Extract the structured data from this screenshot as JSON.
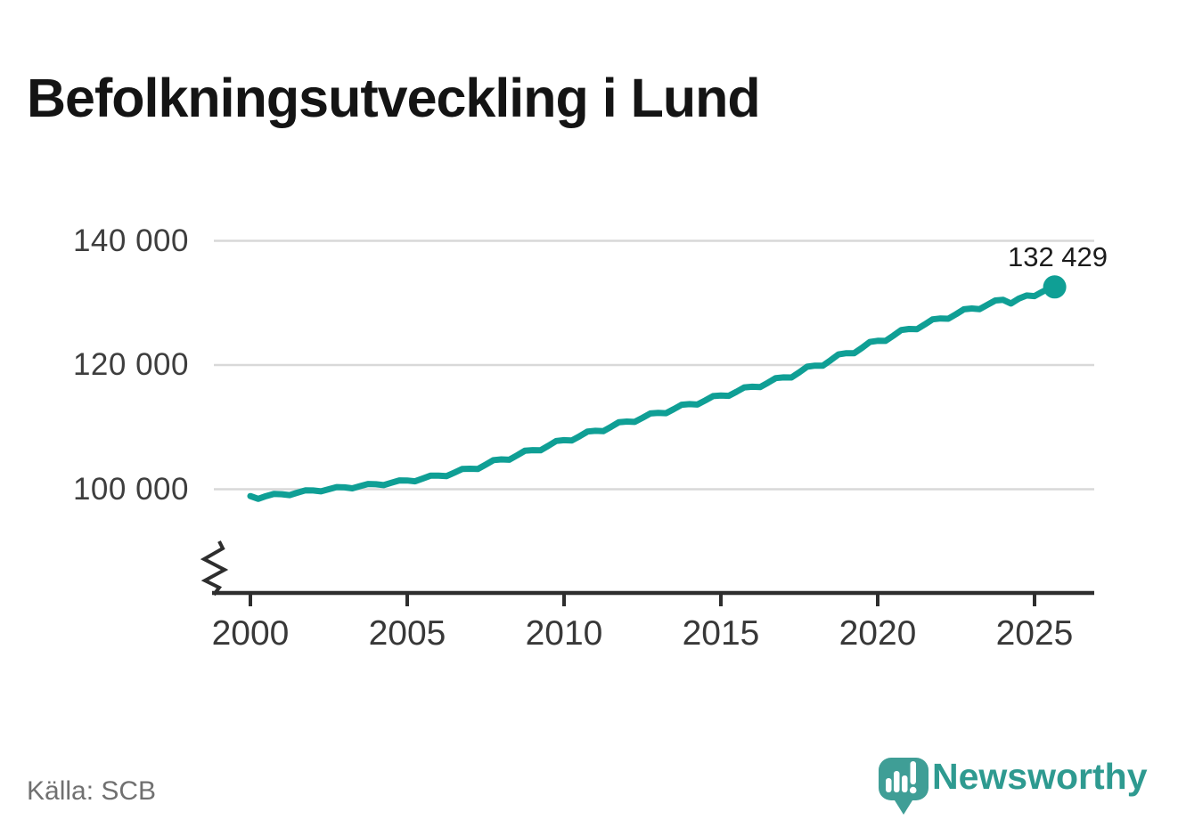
{
  "chart_data": {
    "type": "line",
    "title": "Befolkningsutveckling i Lund",
    "x": [
      2000,
      2000.25,
      2000.5,
      2000.75,
      2001,
      2001.25,
      2001.5,
      2001.75,
      2002,
      2002.25,
      2002.5,
      2002.75,
      2003,
      2003.25,
      2003.5,
      2003.75,
      2004,
      2004.25,
      2004.5,
      2004.75,
      2005,
      2005.25,
      2005.5,
      2005.75,
      2006,
      2006.25,
      2006.5,
      2006.75,
      2007,
      2007.25,
      2007.5,
      2007.75,
      2008,
      2008.25,
      2008.5,
      2008.75,
      2009,
      2009.25,
      2009.5,
      2009.75,
      2010,
      2010.25,
      2010.5,
      2010.75,
      2011,
      2011.25,
      2011.5,
      2011.75,
      2012,
      2012.25,
      2012.5,
      2012.75,
      2013,
      2013.25,
      2013.5,
      2013.75,
      2014,
      2014.25,
      2014.5,
      2014.75,
      2015,
      2015.25,
      2015.5,
      2015.75,
      2016,
      2016.25,
      2016.5,
      2016.75,
      2017,
      2017.25,
      2017.5,
      2017.75,
      2018,
      2018.25,
      2018.5,
      2018.75,
      2019,
      2019.25,
      2019.5,
      2019.75,
      2020,
      2020.25,
      2020.5,
      2020.75,
      2021,
      2021.25,
      2021.5,
      2021.75,
      2022,
      2022.25,
      2022.5,
      2022.75,
      2023,
      2023.25,
      2023.5,
      2023.75,
      2024,
      2024.25,
      2024.5,
      2024.75,
      2025,
      2025.25,
      2025.5
    ],
    "values": [
      98900,
      98450,
      98900,
      99250,
      99200,
      99060,
      99440,
      99820,
      99800,
      99650,
      100000,
      100340,
      100300,
      100150,
      100500,
      100840,
      100800,
      100660,
      101040,
      101420,
      101400,
      101280,
      101730,
      102190,
      102200,
      102110,
      102670,
      103250,
      103300,
      103250,
      103950,
      104690,
      104800,
      104750,
      105450,
      106190,
      106300,
      106260,
      106990,
      107770,
      107900,
      107850,
      108550,
      109290,
      109400,
      109350,
      110050,
      110790,
      110900,
      110840,
      111500,
      112200,
      112300,
      112240,
      112900,
      113600,
      113700,
      113640,
      114300,
      115000,
      115100,
      115040,
      115700,
      116400,
      116500,
      116450,
      117150,
      117890,
      118000,
      117990,
      118830,
      119730,
      119900,
      119900,
      120770,
      121710,
      121900,
      121900,
      122770,
      123710,
      123900,
      123890,
      124730,
      125630,
      125800,
      125770,
      126540,
      127360,
      127500,
      127460,
      128190,
      128970,
      129100,
      129000,
      129700,
      130400,
      130500,
      129900,
      130700,
      131200,
      131100,
      131800,
      132429
    ],
    "end_value": 132429,
    "end_label": "132 429",
    "x_ticks": [
      {
        "value": 2000,
        "label": "2000"
      },
      {
        "value": 2005,
        "label": "2005"
      },
      {
        "value": 2010,
        "label": "2010"
      },
      {
        "value": 2015,
        "label": "2015"
      },
      {
        "value": 2020,
        "label": "2020"
      },
      {
        "value": 2025,
        "label": "2025"
      }
    ],
    "y_ticks": [
      {
        "value": 100000,
        "label": "100 000"
      },
      {
        "value": 120000,
        "label": "120 000"
      },
      {
        "value": 140000,
        "label": "140 000"
      }
    ],
    "xlim": [
      1998.8,
      2026.9
    ],
    "ylim": [
      96000,
      143000
    ],
    "grid": "horizontal",
    "legend": "none",
    "axis_break": true,
    "line_color": "#0f9f95",
    "grid_color": "#d8d8d8",
    "axis_color": "#2e2e2e"
  },
  "footer": {
    "source": "Källa: SCB",
    "brand": "Newsworthy",
    "brand_color": "#2e9a90",
    "logo_color": "#3f9e96"
  }
}
